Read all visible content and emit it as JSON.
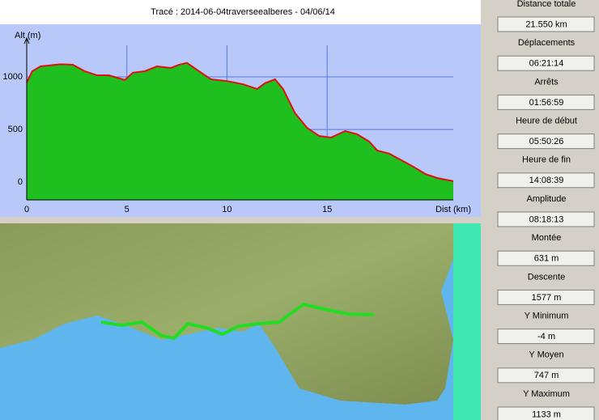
{
  "chart_data": {
    "type": "area",
    "title": "Tracé : 2014-06-04traverseealberes - 04/06/14",
    "x_label": "Dist (km)",
    "y_label": "Alt (m)",
    "x": [
      0,
      0.28,
      0.69,
      1.7,
      2.3,
      2.9,
      3.5,
      4.1,
      4.9,
      5.3,
      5.9,
      6.5,
      7.2,
      7.6,
      8.0,
      8.6,
      9.2,
      10.0,
      10.8,
      11.5,
      11.9,
      12.4,
      12.8,
      13.4,
      14.0,
      14.6,
      15.2,
      15.9,
      16.5,
      17.1,
      17.5,
      18.1,
      18.7,
      19.3,
      19.9,
      20.5,
      21.3
    ],
    "values": [
      946,
      1054,
      1100,
      1120,
      1115,
      1054,
      1015,
      1015,
      970,
      1040,
      1054,
      1100,
      1085,
      1115,
      1133,
      1054,
      977,
      960,
      930,
      885,
      940,
      977,
      885,
      654,
      515,
      438,
      423,
      485,
      454,
      385,
      300,
      270,
      208,
      146,
      77,
      38,
      8
    ],
    "color": "#1fbf1f",
    "line_color": "#e01010",
    "xlim": [
      0,
      21.3
    ],
    "ylim": [
      -170,
      1300
    ],
    "xticks": [
      0,
      5,
      10,
      15
    ],
    "yticks": [
      0,
      500,
      1000
    ],
    "grid": true
  },
  "stats": [
    {
      "label": "Distance totale",
      "value": "21.550 km"
    },
    {
      "label": "Déplacements",
      "value": "06:21:14"
    },
    {
      "label": "Arrêts",
      "value": "01:56:59"
    },
    {
      "label": "Heure de début",
      "value": "05:50:26"
    },
    {
      "label": "Heure de fin",
      "value": "14:08:39"
    },
    {
      "label": "Amplitude",
      "value": "08:18:13"
    },
    {
      "label": "Montée",
      "value": "631 m"
    },
    {
      "label": "Descente",
      "value": "1577 m"
    },
    {
      "label": "Y Minimum",
      "value": "-4 m"
    },
    {
      "label": "Y Moyen",
      "value": "747 m"
    },
    {
      "label": "Y Maximum",
      "value": "1133 m"
    }
  ]
}
